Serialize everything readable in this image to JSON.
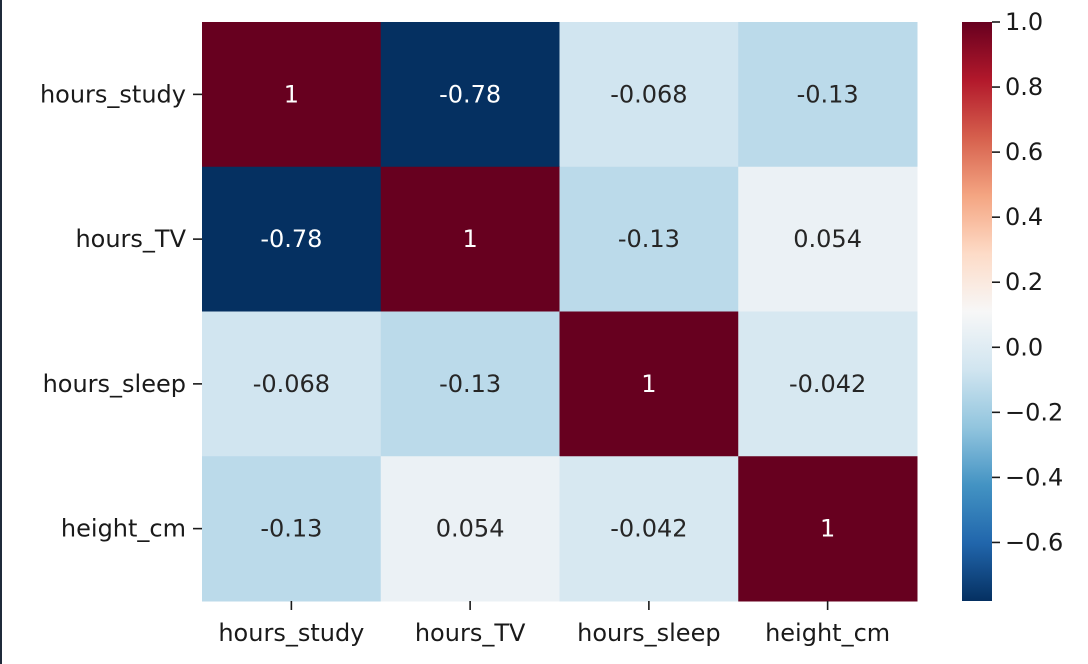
{
  "chart_data": {
    "type": "heatmap",
    "title": "",
    "xlabel": "",
    "ylabel": "",
    "x_labels": [
      "hours_study",
      "hours_TV",
      "hours_sleep",
      "height_cm"
    ],
    "y_labels": [
      "hours_study",
      "hours_TV",
      "hours_sleep",
      "height_cm"
    ],
    "values": [
      [
        1,
        -0.78,
        -0.068,
        -0.13
      ],
      [
        -0.78,
        1,
        -0.13,
        0.054
      ],
      [
        -0.068,
        -0.13,
        1,
        -0.042
      ],
      [
        -0.13,
        0.054,
        -0.042,
        1
      ]
    ],
    "annotations": [
      [
        "1",
        "-0.78",
        "-0.068",
        "-0.13"
      ],
      [
        "-0.78",
        "1",
        "-0.13",
        "0.054"
      ],
      [
        "-0.068",
        "-0.13",
        "1",
        "-0.042"
      ],
      [
        "-0.13",
        "0.054",
        "-0.042",
        "1"
      ]
    ],
    "colormap": "RdBu_r",
    "vmin": -0.78,
    "vmax": 1.0,
    "colorbar_ticks": [
      "1.0",
      "0.8",
      "0.6",
      "0.4",
      "0.2",
      "0.0",
      "−0.2",
      "−0.4",
      "−0.6"
    ],
    "colorbar_tick_values": [
      1.0,
      0.8,
      0.6,
      0.4,
      0.2,
      0.0,
      -0.2,
      -0.4,
      -0.6
    ],
    "legend": "colorbar-right"
  }
}
